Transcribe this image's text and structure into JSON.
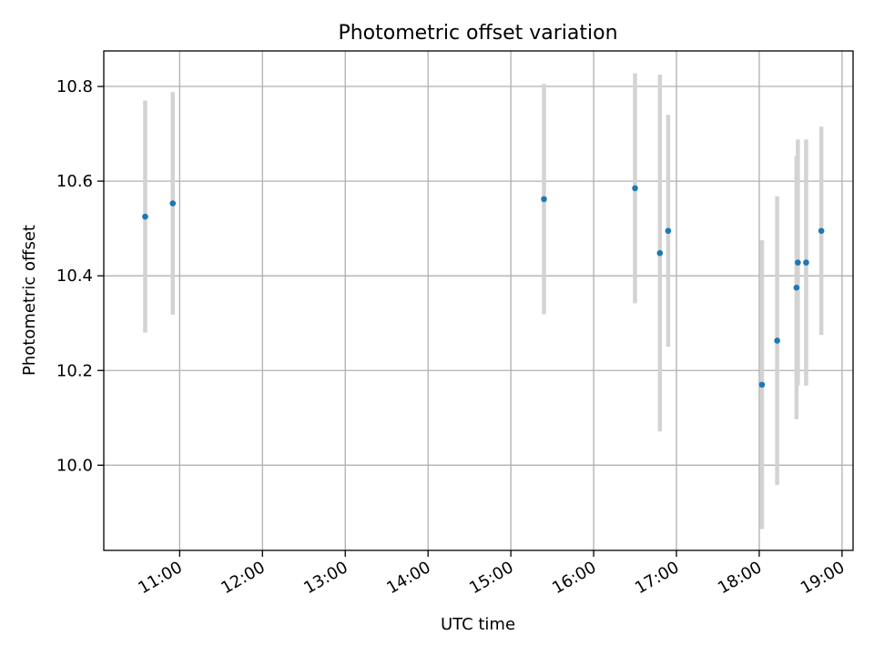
{
  "chart_data": {
    "type": "scatter",
    "title": "Photometric offset variation",
    "xlabel": "UTC time",
    "ylabel": "Photometric offset",
    "x_ticks": [
      "11:00",
      "12:00",
      "13:00",
      "14:00",
      "15:00",
      "16:00",
      "17:00",
      "18:00",
      "19:00"
    ],
    "y_ticks": [
      "10.0",
      "10.2",
      "10.4",
      "10.6",
      "10.8"
    ],
    "xlim": [
      "10:05",
      "19:08"
    ],
    "ylim": [
      9.82,
      10.875
    ],
    "grid": true,
    "marker_color": "#1f77b4",
    "errorbar_color": "#d3d3d3",
    "points": [
      {
        "t": "10:35",
        "y": 10.525,
        "err": 0.245
      },
      {
        "t": "10:55",
        "y": 10.553,
        "err": 0.235
      },
      {
        "t": "15:24",
        "y": 10.562,
        "err": 0.243
      },
      {
        "t": "16:30",
        "y": 10.585,
        "err": 0.243
      },
      {
        "t": "16:48",
        "y": 10.448,
        "err": 0.377
      },
      {
        "t": "16:54",
        "y": 10.495,
        "err": 0.245
      },
      {
        "t": "18:02",
        "y": 10.17,
        "err": 0.305
      },
      {
        "t": "18:13",
        "y": 10.263,
        "err": 0.305
      },
      {
        "t": "18:27",
        "y": 10.375,
        "err": 0.278
      },
      {
        "t": "18:28",
        "y": 10.428,
        "err": 0.26
      },
      {
        "t": "18:34",
        "y": 10.428,
        "err": 0.26
      },
      {
        "t": "18:45",
        "y": 10.495,
        "err": 0.22
      }
    ]
  }
}
